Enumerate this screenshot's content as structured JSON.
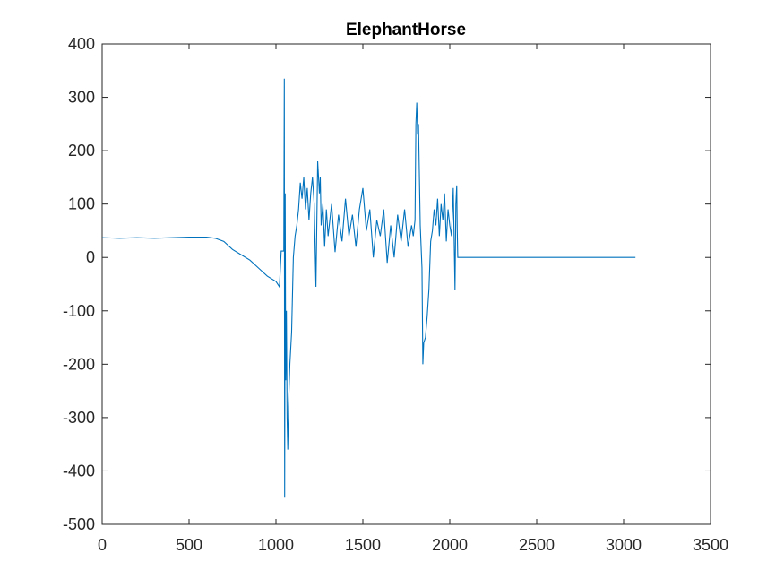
{
  "chart_data": {
    "type": "line",
    "title": "ElephantHorse",
    "xlabel": "",
    "ylabel": "",
    "xlim": [
      0,
      3500
    ],
    "ylim": [
      -500,
      400
    ],
    "xticks": [
      "0",
      "500",
      "1000",
      "1500",
      "2000",
      "2500",
      "3000",
      "3500"
    ],
    "yticks": [
      "400",
      "300",
      "200",
      "100",
      "0",
      "-100",
      "-200",
      "-300",
      "-400",
      "-500"
    ],
    "grid": false,
    "legend": "none",
    "line_color": "#0072BD",
    "series": [
      {
        "x": [
          0,
          100,
          200,
          300,
          400,
          500,
          600,
          650,
          700,
          750,
          800,
          850,
          900,
          950,
          1000,
          1020,
          1030,
          1035,
          1040,
          1045,
          1048,
          1050,
          1053,
          1056,
          1060,
          1064,
          1068,
          1072,
          1080,
          1090,
          1100,
          1110,
          1120,
          1130,
          1140,
          1150,
          1160,
          1170,
          1180,
          1190,
          1200,
          1210,
          1220,
          1230,
          1240,
          1250,
          1255,
          1260,
          1270,
          1280,
          1290,
          1300,
          1320,
          1340,
          1360,
          1380,
          1400,
          1420,
          1440,
          1460,
          1480,
          1500,
          1520,
          1540,
          1560,
          1580,
          1600,
          1620,
          1640,
          1660,
          1680,
          1700,
          1720,
          1740,
          1760,
          1780,
          1790,
          1800,
          1805,
          1810,
          1815,
          1820,
          1830,
          1840,
          1845,
          1850,
          1860,
          1870,
          1880,
          1890,
          1900,
          1910,
          1920,
          1930,
          1940,
          1950,
          1960,
          1970,
          1980,
          1990,
          2000,
          2010,
          2020,
          2030,
          2035,
          2040,
          2043,
          2046,
          2050,
          2055,
          2060,
          2100,
          2500,
          3068
        ],
        "y": [
          37,
          36,
          37,
          36,
          37,
          38,
          38,
          36,
          30,
          15,
          5,
          -5,
          -20,
          -35,
          -45,
          -55,
          12,
          12,
          12,
          12,
          335,
          -450,
          120,
          -230,
          -100,
          -300,
          -360,
          -280,
          -200,
          -140,
          0,
          40,
          60,
          90,
          140,
          110,
          150,
          90,
          130,
          70,
          120,
          150,
          100,
          -55,
          180,
          120,
          150,
          60,
          100,
          20,
          90,
          40,
          100,
          10,
          80,
          30,
          110,
          40,
          80,
          20,
          90,
          130,
          50,
          90,
          0,
          70,
          40,
          90,
          -10,
          60,
          0,
          80,
          30,
          90,
          20,
          60,
          40,
          70,
          250,
          290,
          230,
          250,
          60,
          -20,
          -200,
          -160,
          -150,
          -110,
          -60,
          30,
          50,
          90,
          60,
          110,
          40,
          100,
          70,
          120,
          30,
          90,
          60,
          40,
          130,
          -60,
          100,
          135,
          50,
          0,
          0,
          0,
          0,
          0,
          0,
          0
        ]
      }
    ]
  }
}
